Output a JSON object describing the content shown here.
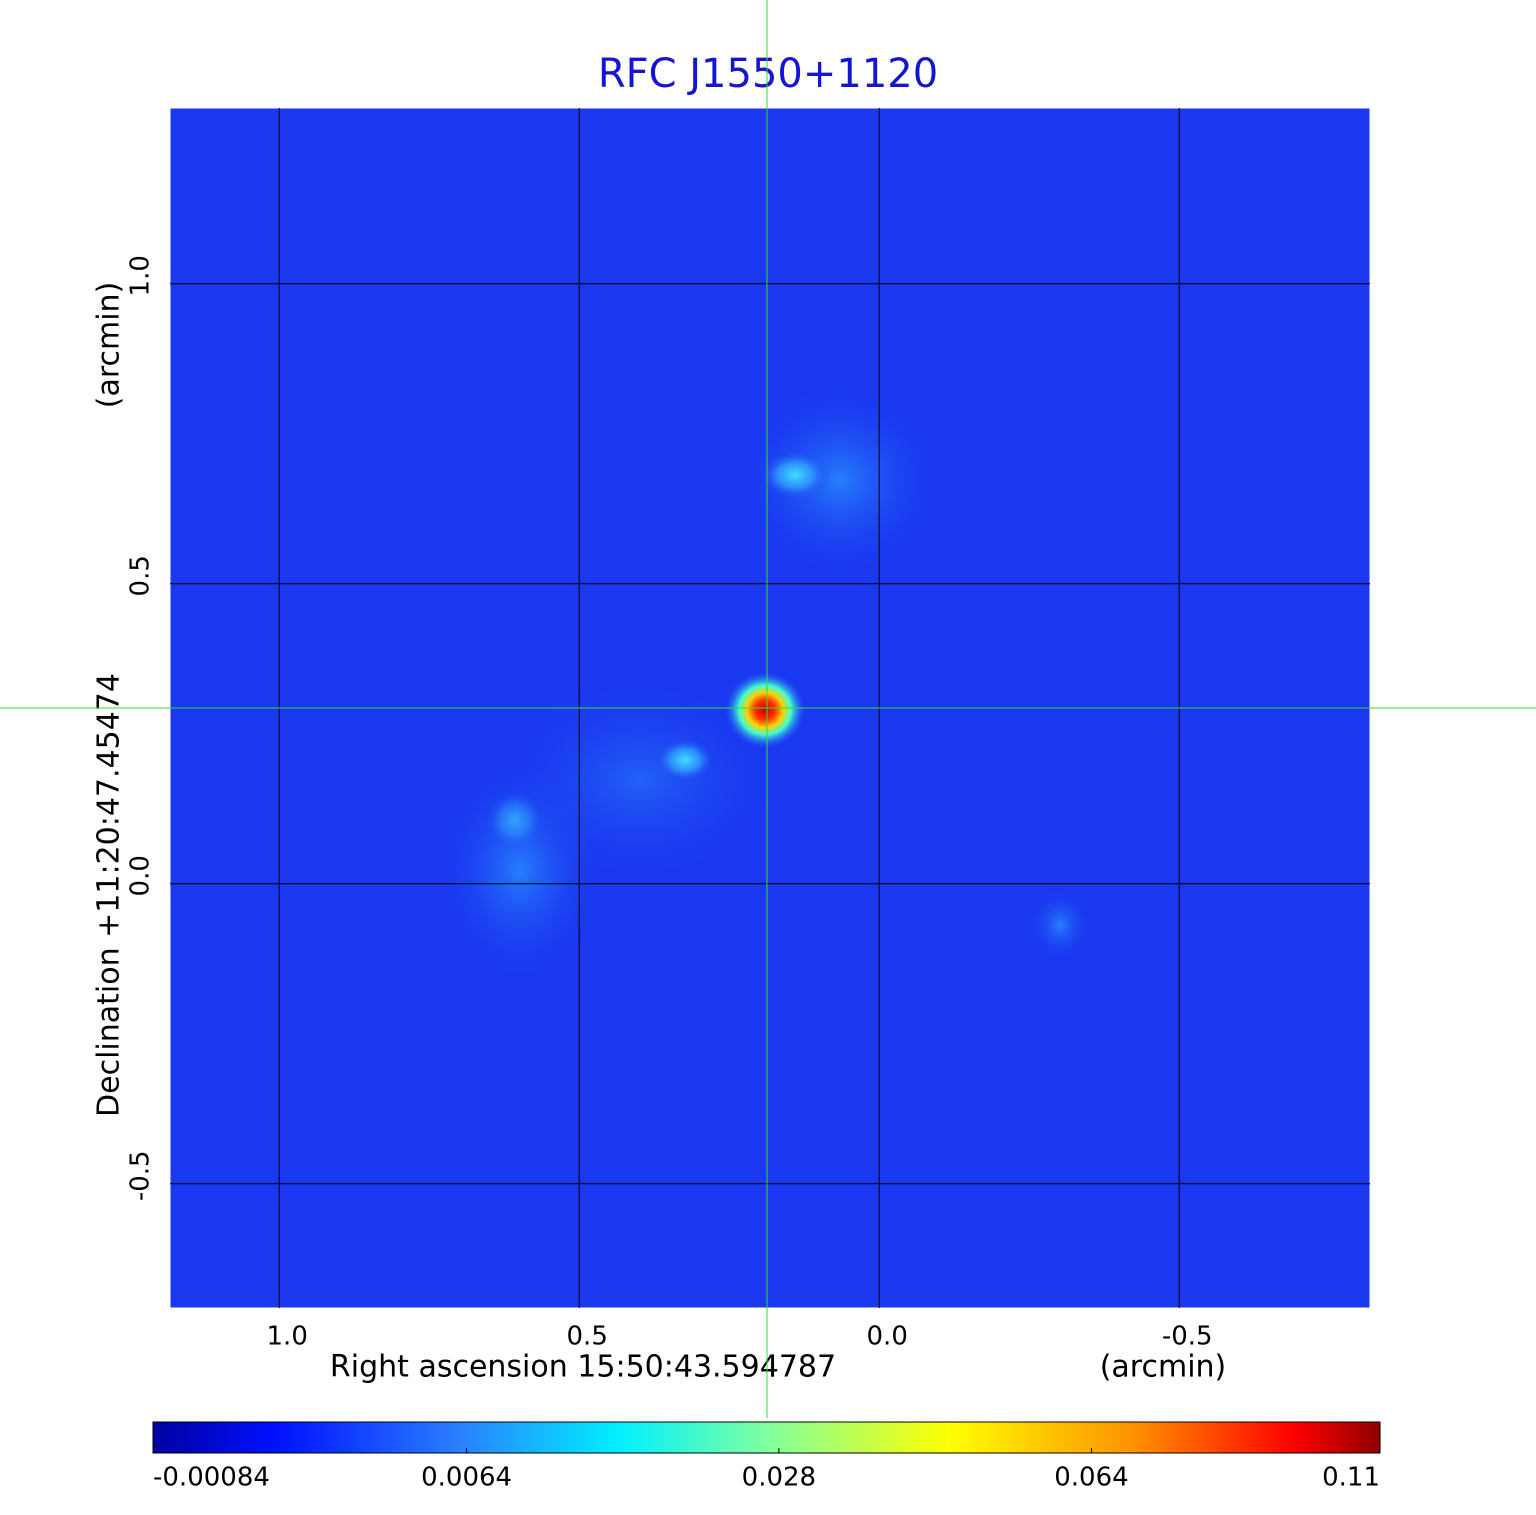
{
  "chart_data": {
    "type": "image",
    "title": "RFC J1550+1120",
    "x_label": "Right ascension  15:50:43.594787",
    "x_unit": "(arcmin)",
    "y_label": "Declination  +11:20:47.45474",
    "y_unit": "(arcmin)",
    "xlim": [
      1.182,
      -0.818
    ],
    "ylim": [
      -0.707,
      1.293
    ],
    "xticks": [
      {
        "value": 1,
        "label": "1.0"
      },
      0.5,
      {
        "value": 0,
        "label": "0.0"
      },
      -0.5
    ],
    "yticks": [
      {
        "value": 1,
        "label": "1.0"
      },
      0.5,
      {
        "value": 0,
        "label": "0.0"
      },
      -0.5
    ],
    "grid": true,
    "crosshair": {
      "x": 0.187,
      "y": 0.293,
      "color": "#33dd33"
    },
    "colorbar": {
      "scale": "sqrt",
      "lim": [
        -0.00084,
        0.11
      ],
      "ticks": [
        -0.00084,
        0.0064,
        0.028,
        0.064,
        0.11
      ]
    }
  }
}
